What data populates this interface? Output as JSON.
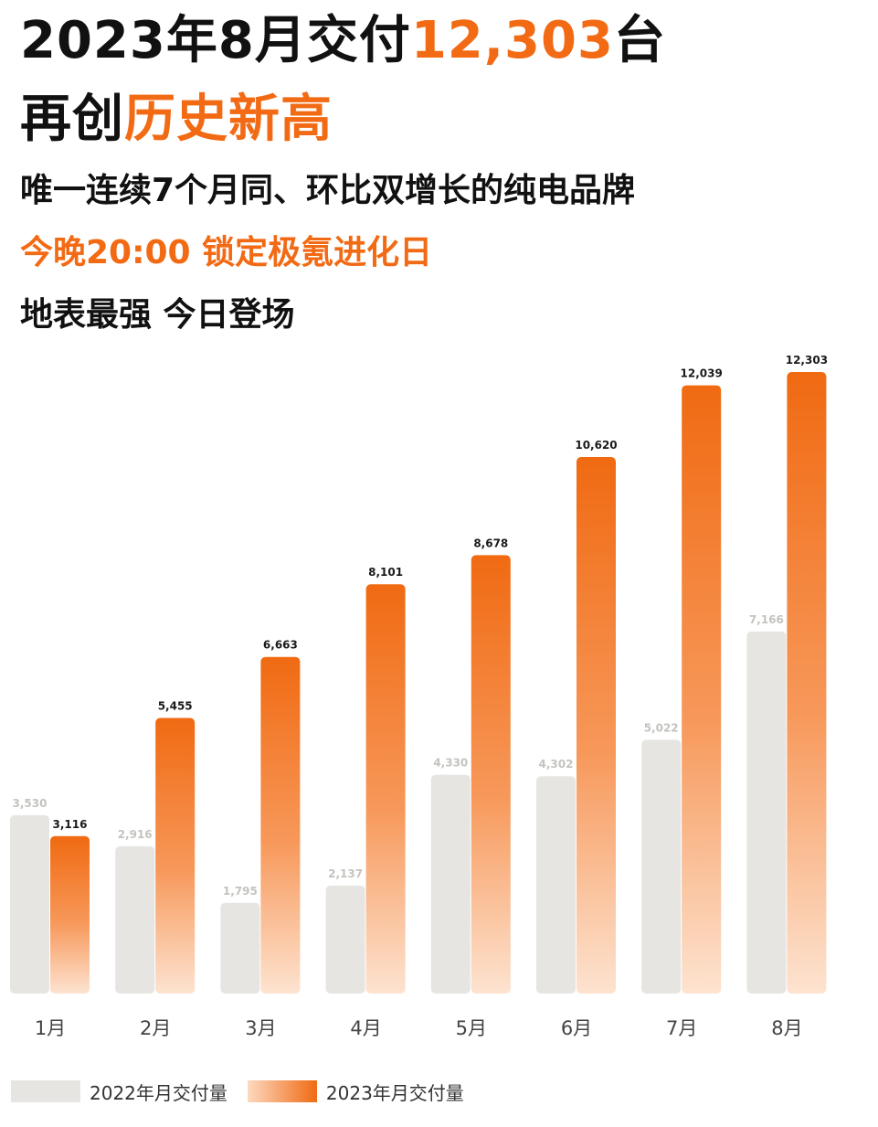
{
  "headline": {
    "part1": "2023年8月交付",
    "number": "12,303",
    "part2": "台",
    "line2_prefix": "再创",
    "line2_highlight": "历史新高"
  },
  "subtitle": "唯一连续7个月同、环比双增长的纯电品牌",
  "event": "今晚20:00 锁定极氪进化日",
  "tagline": "地表最强 今日登场",
  "colors": {
    "accent": "#f26a14",
    "bar2022": "#e6e5e1",
    "bar2023_top": "#f06a12",
    "bar2023_bottom": "#fde3d0"
  },
  "chart_data": {
    "type": "bar",
    "categories": [
      "1月",
      "2月",
      "3月",
      "4月",
      "5月",
      "6月",
      "7月",
      "8月"
    ],
    "series": [
      {
        "name": "2022年月交付量",
        "values": [
          3530,
          2916,
          1795,
          2137,
          4330,
          4302,
          5022,
          7166
        ],
        "labels": [
          "3,530",
          "2,916",
          "1,795",
          "2,137",
          "4,330",
          "4,302",
          "5,022",
          "7,166"
        ]
      },
      {
        "name": "2023年月交付量",
        "values": [
          3116,
          5455,
          6663,
          8101,
          8678,
          10620,
          12039,
          12303
        ],
        "labels": [
          "3,116",
          "5,455",
          "6,663",
          "8,101",
          "8,678",
          "10,620",
          "12,039",
          "12,303"
        ]
      }
    ],
    "ylim": [
      0,
      12303
    ],
    "grid": false,
    "legend": "bottom-left"
  }
}
